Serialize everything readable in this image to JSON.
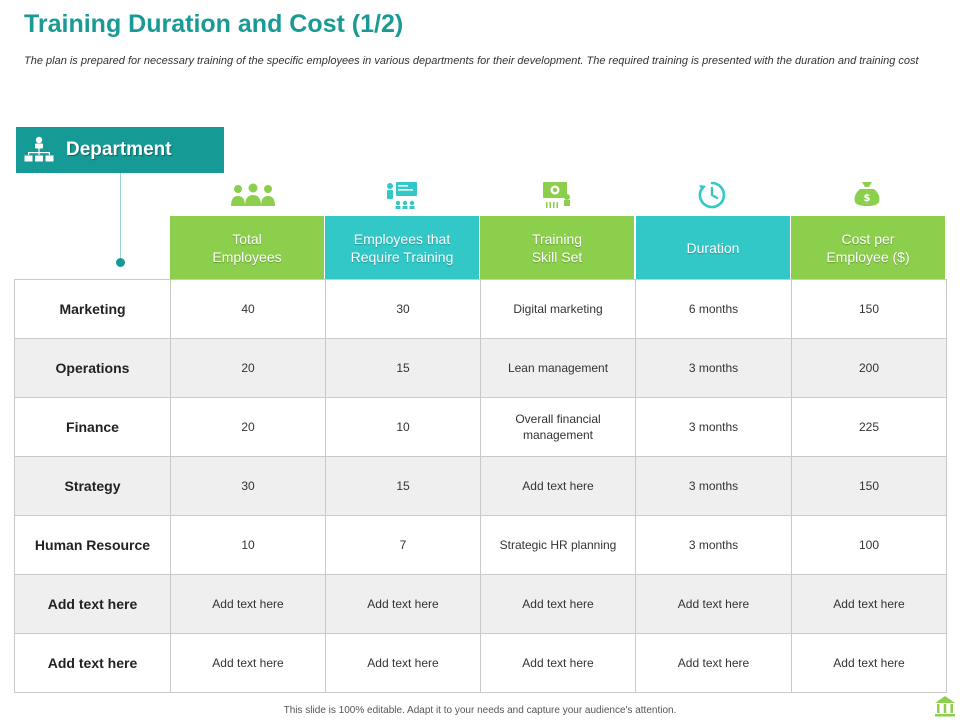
{
  "title": "Training Duration and Cost (1/2)",
  "subtitle": "The plan is prepared for necessary training of the specific employees in various departments for their development. The required training is presented with the duration and training cost",
  "department_label": "Department",
  "colors": {
    "teal_dark": "#159a95",
    "green": "#8ccf4d",
    "teal": "#33c8c8",
    "title": "#1a9a95"
  },
  "icons": {
    "department": "org-chart-icon",
    "columns": [
      "people-group-icon",
      "trainer-presentation-icon",
      "skill-board-icon",
      "clock-icon",
      "money-bag-icon"
    ]
  },
  "table": {
    "headers": [
      "Total\nEmployees",
      "Employees that\nRequire Training",
      "Training\nSkill Set",
      "Duration",
      "Cost  per\nEmployee ($)"
    ],
    "rows": [
      {
        "label": "Marketing",
        "cells": [
          "40",
          "30",
          "Digital marketing",
          "6 months",
          "150"
        ]
      },
      {
        "label": "Operations",
        "cells": [
          "20",
          "15",
          "Lean management",
          "3 months",
          "200"
        ]
      },
      {
        "label": "Finance",
        "cells": [
          "20",
          "10",
          "Overall  financial management",
          "3 months",
          "225"
        ]
      },
      {
        "label": "Strategy",
        "cells": [
          "30",
          "15",
          "Add text here",
          "3 months",
          "150"
        ]
      },
      {
        "label": "Human Resource",
        "cells": [
          "10",
          "7",
          "Strategic HR planning",
          "3 months",
          "100"
        ]
      },
      {
        "label": "Add  text here",
        "cells": [
          "Add text here",
          "Add text here",
          "Add text here",
          "Add text here",
          "Add text here"
        ]
      },
      {
        "label": "Add  text here",
        "cells": [
          "Add text here",
          "Add text here",
          "Add text here",
          "Add text here",
          "Add text here"
        ]
      }
    ]
  },
  "footer": "This slide is 100% editable.  Adapt it to your needs and capture your audience's attention."
}
